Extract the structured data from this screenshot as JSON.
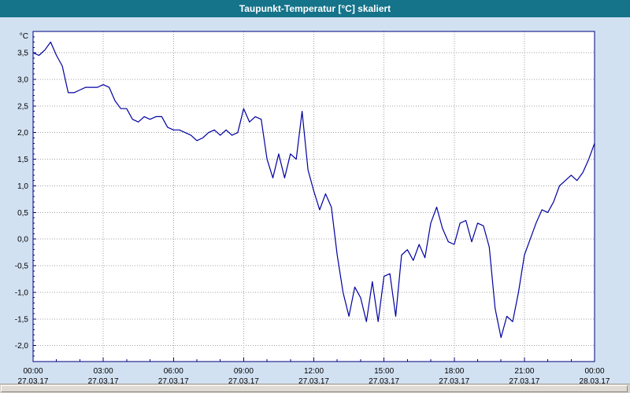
{
  "title": "Taupunkt-Temperatur [°C] skaliert",
  "colors": {
    "titlebar": "#15738a",
    "background": "#d2e1f2",
    "plot_background": "#ffffff",
    "line": "#0000a0",
    "grid": "#a0a0a0",
    "plot_border": "#000080",
    "label": "#000000"
  },
  "chart_data": {
    "type": "line",
    "title": "Taupunkt-Temperatur [°C] skaliert",
    "ylabel": "°C",
    "xlabel": "",
    "grid": true,
    "legend": "none",
    "ylim": [
      -2.3,
      3.9
    ],
    "xlim_hours": [
      0,
      24
    ],
    "yticks": [
      {
        "value": 3.5,
        "label": "3,5"
      },
      {
        "value": 3.0,
        "label": "3,0"
      },
      {
        "value": 2.5,
        "label": "2,5"
      },
      {
        "value": 2.0,
        "label": "2,0"
      },
      {
        "value": 1.5,
        "label": "1,5"
      },
      {
        "value": 1.0,
        "label": "1,0"
      },
      {
        "value": 0.5,
        "label": "0,5"
      },
      {
        "value": 0.0,
        "label": "0,0"
      },
      {
        "value": -0.5,
        "label": "-0,5"
      },
      {
        "value": -1.0,
        "label": "-1,0"
      },
      {
        "value": -1.5,
        "label": "-1,5"
      },
      {
        "value": -2.0,
        "label": "-2,0"
      }
    ],
    "xticks": [
      {
        "hour": 0,
        "time": "00:00",
        "date": "27.03.17"
      },
      {
        "hour": 3,
        "time": "03:00",
        "date": "27.03.17"
      },
      {
        "hour": 6,
        "time": "06:00",
        "date": "27.03.17"
      },
      {
        "hour": 9,
        "time": "09:00",
        "date": "27.03.17"
      },
      {
        "hour": 12,
        "time": "12:00",
        "date": "27.03.17"
      },
      {
        "hour": 15,
        "time": "15:00",
        "date": "27.03.17"
      },
      {
        "hour": 18,
        "time": "18:00",
        "date": "27.03.17"
      },
      {
        "hour": 21,
        "time": "21:00",
        "date": "27.03.17"
      },
      {
        "hour": 24,
        "time": "00:00",
        "date": "28.03.17"
      }
    ],
    "series": [
      {
        "name": "Taupunkt-Temperatur",
        "t_start_hours": 0,
        "t_step_hours": 0.25,
        "values": [
          3.5,
          3.45,
          3.55,
          3.7,
          3.45,
          3.25,
          2.75,
          2.75,
          2.8,
          2.85,
          2.85,
          2.85,
          2.9,
          2.85,
          2.6,
          2.45,
          2.45,
          2.25,
          2.2,
          2.3,
          2.25,
          2.3,
          2.3,
          2.1,
          2.05,
          2.05,
          2.0,
          1.95,
          1.85,
          1.9,
          2.0,
          2.05,
          1.95,
          2.05,
          1.95,
          2.0,
          2.45,
          2.2,
          2.3,
          2.25,
          1.5,
          1.15,
          1.6,
          1.15,
          1.6,
          1.5,
          2.4,
          1.3,
          0.9,
          0.55,
          0.85,
          0.6,
          -0.3,
          -1.0,
          -1.45,
          -0.9,
          -1.1,
          -1.55,
          -0.8,
          -1.55,
          -0.7,
          -0.65,
          -1.45,
          -0.3,
          -0.2,
          -0.4,
          -0.1,
          -0.35,
          0.3,
          0.6,
          0.2,
          -0.05,
          -0.1,
          0.3,
          0.35,
          -0.05,
          0.3,
          0.25,
          -0.15,
          -1.3,
          -1.85,
          -1.45,
          -1.55,
          -1.0,
          -0.3,
          0.0,
          0.3,
          0.55,
          0.5,
          0.7,
          1.0,
          1.1,
          1.2,
          1.1,
          1.25,
          1.5,
          1.8
        ]
      }
    ]
  }
}
